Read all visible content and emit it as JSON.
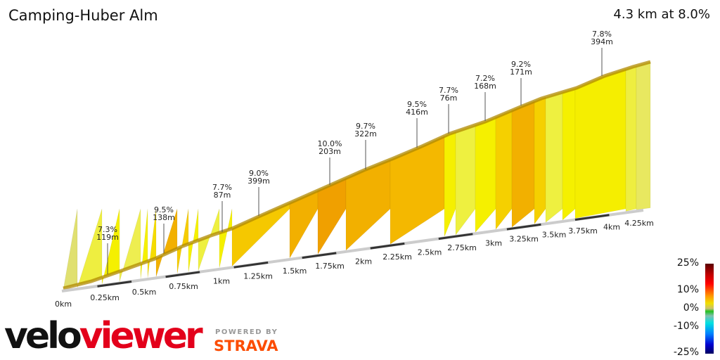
{
  "title": "Camping-Huber Alm",
  "summary": "4.3 km at 8.0%",
  "chart_data": {
    "type": "area",
    "title": "Camping-Huber Alm",
    "x_ticks": [
      "0km",
      "0.25km",
      "0.5km",
      "0.75km",
      "1km",
      "1.25km",
      "1.5km",
      "1.75km",
      "2km",
      "2.25km",
      "2.5km",
      "2.75km",
      "3km",
      "3.25km",
      "3.5km",
      "3.75km",
      "4km",
      "4.25km"
    ],
    "distance_km": 4.3,
    "avg_grade_pct": 8.0,
    "annotations": [
      {
        "grade": "7.3%",
        "length": "119m"
      },
      {
        "grade": "9.5%",
        "length": "138m"
      },
      {
        "grade": "7.7%",
        "length": "87m"
      },
      {
        "grade": "9.0%",
        "length": "399m"
      },
      {
        "grade": "10.0%",
        "length": "203m"
      },
      {
        "grade": "9.7%",
        "length": "322m"
      },
      {
        "grade": "9.5%",
        "length": "416m"
      },
      {
        "grade": "7.7%",
        "length": "76m"
      },
      {
        "grade": "7.2%",
        "length": "168m"
      },
      {
        "grade": "9.2%",
        "length": "171m"
      },
      {
        "grade": "7.8%",
        "length": "394m"
      }
    ],
    "segment_colors": [
      "#e0e070",
      "#eeee40",
      "#f5f000",
      "#eeee50",
      "#f5f000",
      "#f5dc00",
      "#f2b000",
      "#f5cc00",
      "#f5f000",
      "#eef040",
      "#f5f000",
      "#f5c800",
      "#f2b000",
      "#f0a000",
      "#f2b000",
      "#f4b800",
      "#f5f000",
      "#eef040",
      "#f5f000",
      "#f5d000",
      "#f2b000",
      "#f5d000",
      "#eef040",
      "#f5f000",
      "#f5ee00",
      "#eeee40",
      "#e8e860"
    ]
  },
  "legend": {
    "labels": [
      "25%",
      "10%",
      "0%",
      "-10%",
      "-25%"
    ]
  },
  "branding": {
    "logo_a": "velo",
    "logo_b": "viewer",
    "powered": "POWERED BY",
    "strava": "STRAVA"
  }
}
